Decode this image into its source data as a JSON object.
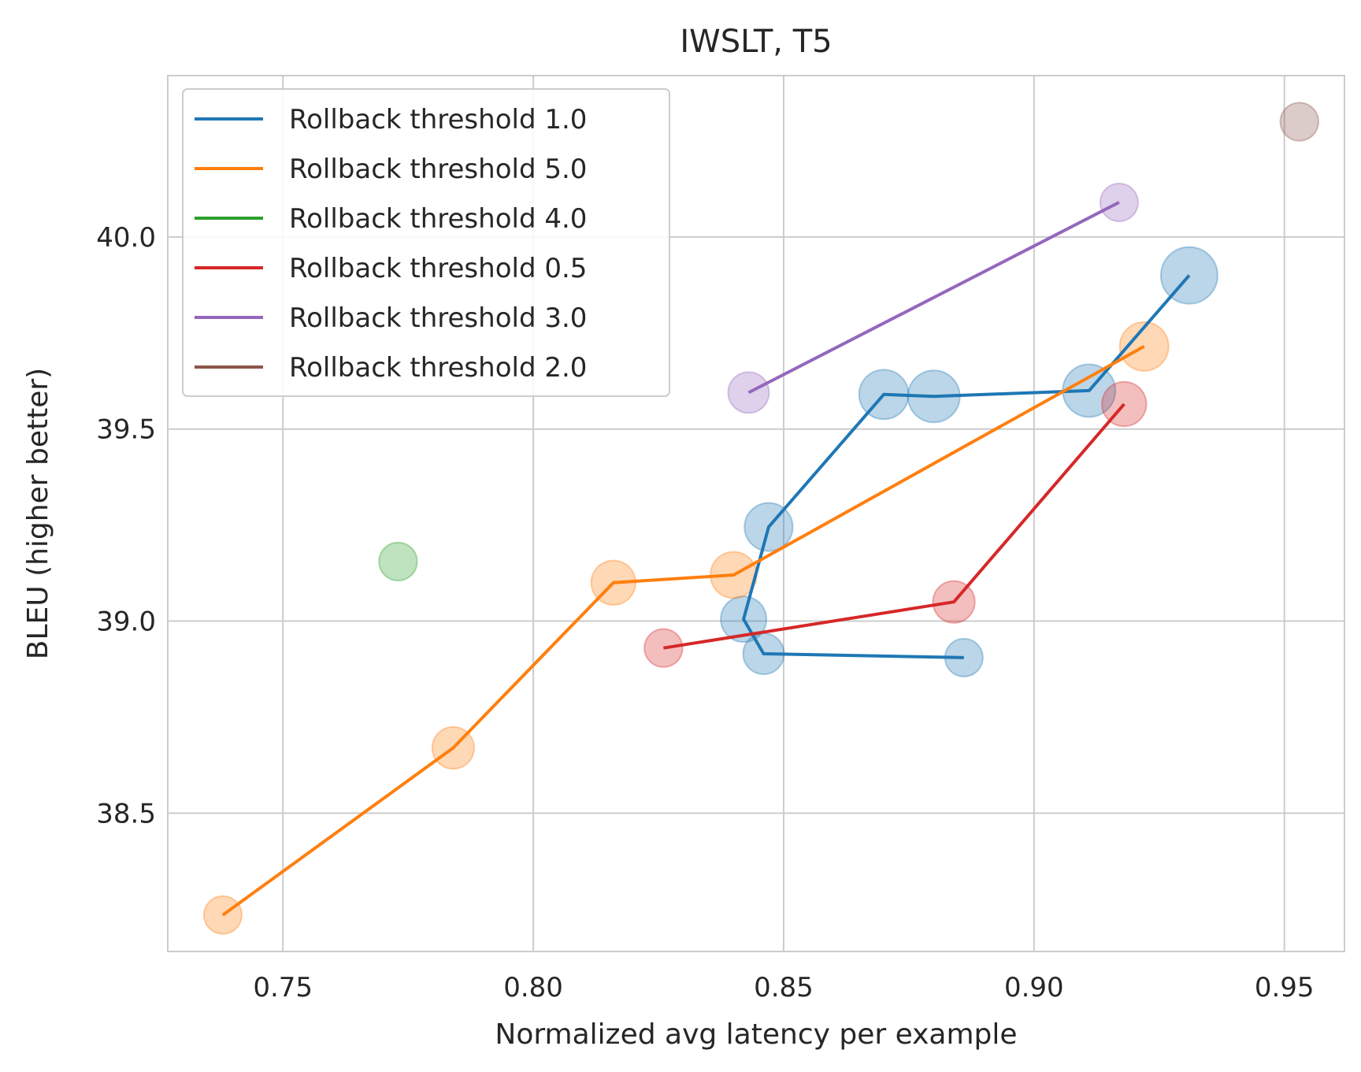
{
  "chart_data": {
    "type": "line",
    "title": "IWSLT, T5",
    "xlabel": "Normalized avg latency per example",
    "ylabel": "BLEU (higher better)",
    "xlim": [
      0.727,
      0.962
    ],
    "ylim": [
      38.14,
      40.42
    ],
    "xticks": [
      0.75,
      0.8,
      0.85,
      0.9,
      0.95
    ],
    "xtick_labels": [
      "0.75",
      "0.80",
      "0.85",
      "0.90",
      "0.95"
    ],
    "yticks": [
      38.5,
      39.0,
      39.5,
      40.0
    ],
    "ytick_labels": [
      "38.5",
      "39.0",
      "39.5",
      "40.0"
    ],
    "grid": true,
    "legend_position": "top-left",
    "marker_note": "translucent circles at each point, size varies",
    "series": [
      {
        "name": "Rollback threshold 1.0",
        "color": "#1f77b4",
        "points": [
          {
            "x": 0.886,
            "y": 38.905,
            "size": 0.35
          },
          {
            "x": 0.846,
            "y": 38.915,
            "size": 0.45
          },
          {
            "x": 0.842,
            "y": 39.005,
            "size": 0.6
          },
          {
            "x": 0.847,
            "y": 39.245,
            "size": 0.68
          },
          {
            "x": 0.87,
            "y": 39.59,
            "size": 0.72
          },
          {
            "x": 0.88,
            "y": 39.585,
            "size": 0.8
          },
          {
            "x": 0.911,
            "y": 39.6,
            "size": 0.82
          },
          {
            "x": 0.931,
            "y": 39.9,
            "size": 0.95
          }
        ]
      },
      {
        "name": "Rollback threshold 5.0",
        "color": "#ff7f0e",
        "points": [
          {
            "x": 0.738,
            "y": 38.235,
            "size": 0.35
          },
          {
            "x": 0.784,
            "y": 38.67,
            "size": 0.48
          },
          {
            "x": 0.816,
            "y": 39.1,
            "size": 0.56
          },
          {
            "x": 0.84,
            "y": 39.12,
            "size": 0.62
          },
          {
            "x": 0.922,
            "y": 39.715,
            "size": 0.7
          }
        ]
      },
      {
        "name": "Rollback threshold 4.0",
        "color": "#2ca02c",
        "points": [
          {
            "x": 0.773,
            "y": 39.155,
            "size": 0.36
          }
        ]
      },
      {
        "name": "Rollback threshold 0.5",
        "color": "#d62728",
        "points": [
          {
            "x": 0.826,
            "y": 38.93,
            "size": 0.36
          },
          {
            "x": 0.884,
            "y": 39.05,
            "size": 0.48
          },
          {
            "x": 0.918,
            "y": 39.565,
            "size": 0.56
          }
        ]
      },
      {
        "name": "Rollback threshold 3.0",
        "color": "#9467bd",
        "points": [
          {
            "x": 0.843,
            "y": 39.595,
            "size": 0.45
          },
          {
            "x": 0.917,
            "y": 40.09,
            "size": 0.35
          }
        ]
      },
      {
        "name": "Rollback threshold 2.0",
        "color": "#8c564b",
        "points": [
          {
            "x": 0.953,
            "y": 40.3,
            "size": 0.36
          }
        ]
      }
    ]
  }
}
